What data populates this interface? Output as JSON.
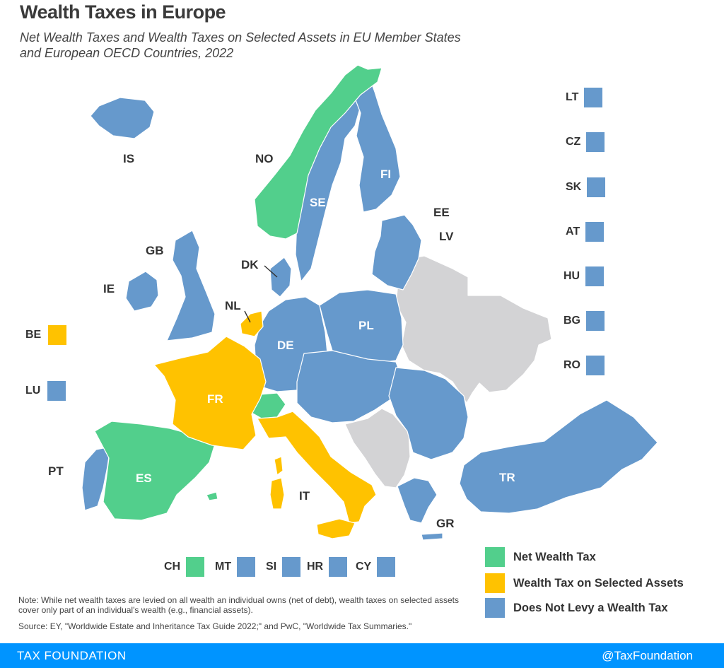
{
  "title": "Wealth Taxes in Europe",
  "subtitle_line1": "Net Wealth Taxes and Wealth Taxes on Selected Assets in EU Member States",
  "subtitle_line2": "and European OECD Countries, 2022",
  "colors": {
    "net_wealth_tax": "#52cf8c",
    "selected_assets": "#ffc200",
    "no_wealth_tax": "#6699cc",
    "not_covered": "#d3d3d5",
    "footer": "#0094ff"
  },
  "map_labels": {
    "IS": "IS",
    "NO": "NO",
    "SE": "SE",
    "FI": "FI",
    "EE": "EE",
    "LV": "LV",
    "GB": "GB",
    "IE": "IE",
    "DK": "DK",
    "NL": "NL",
    "DE": "DE",
    "PL": "PL",
    "FR": "FR",
    "ES": "ES",
    "PT": "PT",
    "IT": "IT",
    "TR": "TR",
    "GR": "GR"
  },
  "side_boxes_right": [
    {
      "code": "LT",
      "category": "no_wealth_tax"
    },
    {
      "code": "CZ",
      "category": "no_wealth_tax"
    },
    {
      "code": "SK",
      "category": "no_wealth_tax"
    },
    {
      "code": "AT",
      "category": "no_wealth_tax"
    },
    {
      "code": "HU",
      "category": "no_wealth_tax"
    },
    {
      "code": "BG",
      "category": "no_wealth_tax"
    },
    {
      "code": "RO",
      "category": "no_wealth_tax"
    }
  ],
  "side_boxes_left": [
    {
      "code": "BE",
      "category": "selected_assets"
    },
    {
      "code": "LU",
      "category": "no_wealth_tax"
    }
  ],
  "bottom_boxes": [
    {
      "code": "CH",
      "category": "net_wealth_tax"
    },
    {
      "code": "MT",
      "category": "no_wealth_tax"
    },
    {
      "code": "SI",
      "category": "no_wealth_tax"
    },
    {
      "code": "HR",
      "category": "no_wealth_tax"
    },
    {
      "code": "CY",
      "category": "no_wealth_tax"
    }
  ],
  "legend": [
    {
      "label": "Net Wealth Tax",
      "category": "net_wealth_tax"
    },
    {
      "label": "Wealth Tax on Selected Assets",
      "category": "selected_assets"
    },
    {
      "label": "Does Not Levy a Wealth Tax",
      "category": "no_wealth_tax"
    }
  ],
  "note": "Note: While net wealth taxes are levied on all wealth an individual owns (net of debt), wealth taxes on selected assets cover only part of an individual's wealth (e.g., financial assets).",
  "source": "Source: EY, \"Worldwide Estate and Inheritance Tax Guide 2022;\" and PwC, \"Worldwide Tax Summaries.\"",
  "footer": {
    "brand": "TAX FOUNDATION",
    "handle": "@TaxFoundation"
  }
}
